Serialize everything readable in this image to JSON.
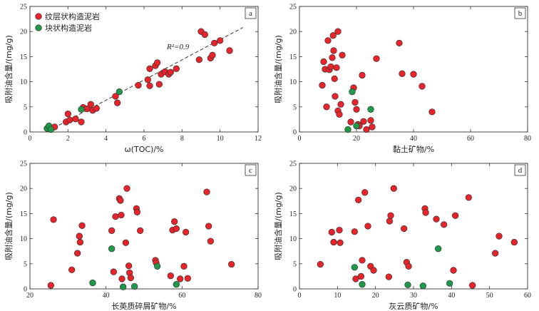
{
  "colors": {
    "laminated": "#e8242a",
    "massive": "#1f9a4a",
    "edge": "#333333"
  },
  "legend": {
    "laminated": "纹层状构造泥岩",
    "massive": "块状构造泥岩"
  },
  "chart_data": [
    {
      "type": "scatter",
      "panel_letter": "a",
      "xlabel": "ω(TOC)/%",
      "ylabel": "吸附油含量/(mg/g)",
      "xlim": [
        0,
        12
      ],
      "ylim": [
        0,
        25
      ],
      "xticks": [
        "0",
        "2",
        "4",
        "6",
        "8",
        "10",
        "12"
      ],
      "yticks": [
        "0",
        "5",
        "10",
        "15",
        "20",
        "25"
      ],
      "annotation": "R²=0.9",
      "trendline": {
        "from": [
          1,
          0.3
        ],
        "to": [
          11.2,
          20.8
        ]
      },
      "series": [
        {
          "key": "laminated",
          "name": "纹层状构造泥岩",
          "points": [
            [
              1.3,
              1.0
            ],
            [
              1.9,
              2.0
            ],
            [
              2.0,
              3.6
            ],
            [
              2.1,
              2.4
            ],
            [
              2.4,
              2.6
            ],
            [
              2.7,
              2.0
            ],
            [
              2.8,
              4.9
            ],
            [
              3.0,
              4.6
            ],
            [
              3.2,
              5.5
            ],
            [
              3.3,
              4.3
            ],
            [
              3.5,
              4.7
            ],
            [
              4.5,
              7.1
            ],
            [
              4.6,
              5.8
            ],
            [
              5.7,
              9.3
            ],
            [
              6.2,
              10.4
            ],
            [
              6.3,
              9.2
            ],
            [
              6.3,
              12.6
            ],
            [
              6.6,
              13.2
            ],
            [
              6.7,
              13.8
            ],
            [
              6.8,
              9.5
            ],
            [
              6.9,
              11.5
            ],
            [
              7.1,
              12.0
            ],
            [
              7.3,
              11.5
            ],
            [
              7.4,
              11.9
            ],
            [
              7.7,
              12.6
            ],
            [
              8.9,
              14.4
            ],
            [
              9.0,
              20.0
            ],
            [
              9.2,
              19.4
            ],
            [
              9.5,
              14.7
            ],
            [
              9.6,
              15.3
            ],
            [
              9.7,
              17.7
            ],
            [
              10.0,
              18.2
            ],
            [
              10.5,
              16.2
            ]
          ]
        },
        {
          "key": "massive",
          "name": "块状构造泥岩",
          "points": [
            [
              0.9,
              0.7
            ],
            [
              1.0,
              1.2
            ],
            [
              1.1,
              0.5
            ],
            [
              2.7,
              4.5
            ],
            [
              4.7,
              8.0
            ]
          ]
        }
      ]
    },
    {
      "type": "scatter",
      "panel_letter": "b",
      "xlabel": "黏土矿物/%",
      "ylabel": "吸附油含量/(mg/g)",
      "xlim": [
        0,
        80
      ],
      "ylim": [
        0,
        25
      ],
      "xticks": [
        "0",
        "20",
        "40",
        "60",
        "80"
      ],
      "yticks": [
        "0",
        "5",
        "10",
        "15",
        "20",
        "25"
      ],
      "series": [
        {
          "key": "laminated",
          "name": "纹层状构造泥岩",
          "points": [
            [
              8.0,
              9.3
            ],
            [
              8.5,
              14.0
            ],
            [
              9.0,
              12.5
            ],
            [
              9.5,
              5.0
            ],
            [
              10.0,
              18.2
            ],
            [
              10.5,
              12.4
            ],
            [
              11.0,
              13.0
            ],
            [
              11.5,
              14.8
            ],
            [
              11.8,
              19.2
            ],
            [
              12.0,
              16.2
            ],
            [
              12.3,
              10.6
            ],
            [
              12.5,
              7.1
            ],
            [
              13.0,
              12.8
            ],
            [
              13.5,
              4.2
            ],
            [
              14.0,
              3.5
            ],
            [
              14.5,
              5.5
            ],
            [
              13.5,
              20.0
            ],
            [
              15.0,
              15.3
            ],
            [
              18.0,
              2.0
            ],
            [
              19.0,
              8.8
            ],
            [
              19.5,
              5.9
            ],
            [
              20.0,
              4.5
            ],
            [
              20.5,
              1.5
            ],
            [
              21.0,
              1.2
            ],
            [
              22.0,
              11.3
            ],
            [
              22.5,
              2.1
            ],
            [
              23.5,
              0.5
            ],
            [
              25.0,
              2.3
            ],
            [
              25.5,
              1.0
            ],
            [
              27.0,
              14.6
            ],
            [
              35.0,
              17.7
            ],
            [
              36.0,
              11.6
            ],
            [
              40.0,
              11.5
            ],
            [
              43.0,
              9.1
            ],
            [
              46.5,
              4.0
            ]
          ]
        },
        {
          "key": "massive",
          "name": "块状构造泥岩",
          "points": [
            [
              17.0,
              0.5
            ],
            [
              18.5,
              8.0
            ],
            [
              20.0,
              1.2
            ],
            [
              25.0,
              4.5
            ]
          ]
        }
      ]
    },
    {
      "type": "scatter",
      "panel_letter": "c",
      "xlabel": "长英质碎屑矿物/%",
      "ylabel": "吸附油含量/(mg/g)",
      "xlim": [
        20,
        80
      ],
      "ylim": [
        0,
        25
      ],
      "xticks": [
        "20",
        "40",
        "60",
        "80"
      ],
      "yticks": [
        "0",
        "5",
        "10",
        "15",
        "20",
        "25"
      ],
      "series": [
        {
          "key": "laminated",
          "name": "纹层状构造泥岩",
          "points": [
            [
              25.5,
              0.7
            ],
            [
              26.2,
              13.8
            ],
            [
              31.0,
              3.8
            ],
            [
              32.5,
              7.1
            ],
            [
              33.0,
              10.5
            ],
            [
              33.2,
              9.3
            ],
            [
              33.7,
              12.6
            ],
            [
              41.5,
              11.6
            ],
            [
              42.0,
              3.4
            ],
            [
              42.5,
              14.4
            ],
            [
              43.5,
              18.0
            ],
            [
              43.8,
              17.6
            ],
            [
              44.0,
              14.7
            ],
            [
              44.2,
              2.0
            ],
            [
              45.2,
              9.2
            ],
            [
              45.5,
              20.0
            ],
            [
              46.0,
              4.6
            ],
            [
              46.2,
              3.2
            ],
            [
              46.5,
              2.2
            ],
            [
              48.0,
              16.0
            ],
            [
              48.2,
              15.3
            ],
            [
              49.0,
              11.6
            ],
            [
              53.0,
              5.7
            ],
            [
              53.2,
              5.2
            ],
            [
              57.0,
              2.6
            ],
            [
              57.5,
              11.7
            ],
            [
              58.0,
              13.4
            ],
            [
              58.5,
              12.0
            ],
            [
              59.5,
              2.0
            ],
            [
              60.5,
              4.5
            ],
            [
              61.0,
              11.3
            ],
            [
              61.5,
              2.1
            ],
            [
              66.5,
              19.3
            ],
            [
              67.0,
              12.5
            ],
            [
              67.5,
              9.5
            ],
            [
              73.0,
              4.9
            ]
          ]
        },
        {
          "key": "massive",
          "name": "块状构造泥岩",
          "points": [
            [
              36.5,
              1.2
            ],
            [
              41.5,
              8.0
            ],
            [
              44.5,
              0.4
            ],
            [
              47.5,
              0.5
            ],
            [
              53.5,
              4.5
            ],
            [
              58.5,
              0.9
            ]
          ]
        }
      ]
    },
    {
      "type": "scatter",
      "panel_letter": "d",
      "xlabel": "灰云质矿物/%",
      "ylabel": "吸附油含量/(mg/g)",
      "xlim": [
        0,
        60
      ],
      "ylim": [
        0,
        25
      ],
      "xticks": [
        "0",
        "10",
        "20",
        "30",
        "40",
        "50",
        "60"
      ],
      "yticks": [
        "0",
        "5",
        "10",
        "15",
        "20",
        "25"
      ],
      "series": [
        {
          "key": "laminated",
          "name": "纹层状构造泥岩",
          "points": [
            [
              5.5,
              4.9
            ],
            [
              8.5,
              11.3
            ],
            [
              9.0,
              9.3
            ],
            [
              10.5,
              11.7
            ],
            [
              10.7,
              9.2
            ],
            [
              14.5,
              11.4
            ],
            [
              14.8,
              2.0
            ],
            [
              15.5,
              17.7
            ],
            [
              16.2,
              2.5
            ],
            [
              16.5,
              5.7
            ],
            [
              17.2,
              19.2
            ],
            [
              18.0,
              12.5
            ],
            [
              18.7,
              4.5
            ],
            [
              19.5,
              3.7
            ],
            [
              23.5,
              2.4
            ],
            [
              23.7,
              13.5
            ],
            [
              24.0,
              14.6
            ],
            [
              24.8,
              20.0
            ],
            [
              27.5,
              12.0
            ],
            [
              28.2,
              5.3
            ],
            [
              28.7,
              4.5
            ],
            [
              33.0,
              16.0
            ],
            [
              33.2,
              15.2
            ],
            [
              36.0,
              13.9
            ],
            [
              38.0,
              12.8
            ],
            [
              40.5,
              3.7
            ],
            [
              41.0,
              14.6
            ],
            [
              44.5,
              18.2
            ],
            [
              45.5,
              0.7
            ],
            [
              51.5,
              7.1
            ],
            [
              52.5,
              10.5
            ],
            [
              56.5,
              9.3
            ]
          ]
        },
        {
          "key": "massive",
          "name": "块状构造泥岩",
          "points": [
            [
              14.5,
              4.3
            ],
            [
              16.5,
              0.9
            ],
            [
              28.5,
              0.8
            ],
            [
              32.5,
              0.6
            ],
            [
              36.5,
              8.0
            ],
            [
              39.5,
              1.1
            ]
          ]
        }
      ]
    }
  ]
}
